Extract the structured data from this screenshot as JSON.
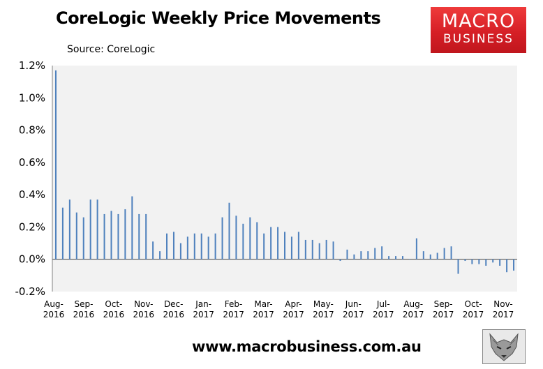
{
  "header": {
    "title": "CoreLogic Weekly Price Movements",
    "source": "Source: CoreLogic"
  },
  "logo": {
    "line1": "MACRO",
    "line2": "BUSINESS"
  },
  "footer": {
    "url": "www.macrobusiness.com.au"
  },
  "colors": {
    "bar": "#4f81bd",
    "plot_bg": "#f2f2f2",
    "logo_red": "#d61f26"
  },
  "icons": {
    "wolf": "wolf-head-icon"
  },
  "chart_data": {
    "type": "bar",
    "title": "CoreLogic Weekly Price Movements",
    "xlabel": "",
    "ylabel": "",
    "ylim": [
      -0.2,
      1.2
    ],
    "y_ticks": [
      "-0.2%",
      "0.0%",
      "0.2%",
      "0.4%",
      "0.6%",
      "0.8%",
      "1.0%",
      "1.2%"
    ],
    "grid": false,
    "legend": "none",
    "x_ticks": [
      {
        "month": "Aug-",
        "year": "2016"
      },
      {
        "month": "Sep-",
        "year": "2016"
      },
      {
        "month": "Oct-",
        "year": "2016"
      },
      {
        "month": "Nov-",
        "year": "2016"
      },
      {
        "month": "Dec-",
        "year": "2016"
      },
      {
        "month": "Jan-",
        "year": "2017"
      },
      {
        "month": "Feb-",
        "year": "2017"
      },
      {
        "month": "Mar-",
        "year": "2017"
      },
      {
        "month": "Apr-",
        "year": "2017"
      },
      {
        "month": "May-",
        "year": "2017"
      },
      {
        "month": "Jun-",
        "year": "2017"
      },
      {
        "month": "Jul-",
        "year": "2017"
      },
      {
        "month": "Aug-",
        "year": "2017"
      },
      {
        "month": "Sep-",
        "year": "2017"
      },
      {
        "month": "Oct-",
        "year": "2017"
      },
      {
        "month": "Nov-",
        "year": "2017"
      }
    ],
    "values": [
      1.17,
      0.32,
      0.37,
      0.29,
      0.26,
      0.37,
      0.37,
      0.28,
      0.3,
      0.28,
      0.31,
      0.39,
      0.28,
      0.28,
      0.11,
      0.05,
      0.16,
      0.17,
      0.1,
      0.14,
      0.16,
      0.16,
      0.14,
      0.16,
      0.26,
      0.35,
      0.27,
      0.22,
      0.26,
      0.23,
      0.16,
      0.2,
      0.2,
      0.17,
      0.14,
      0.17,
      0.12,
      0.12,
      0.1,
      0.12,
      0.11,
      -0.01,
      0.06,
      0.03,
      0.05,
      0.05,
      0.07,
      0.08,
      0.02,
      0.02,
      0.02,
      0.0,
      0.13,
      0.05,
      0.03,
      0.04,
      0.07,
      0.08,
      -0.09,
      -0.01,
      -0.03,
      -0.03,
      -0.04,
      -0.02,
      -0.04,
      -0.08,
      -0.07
    ]
  }
}
